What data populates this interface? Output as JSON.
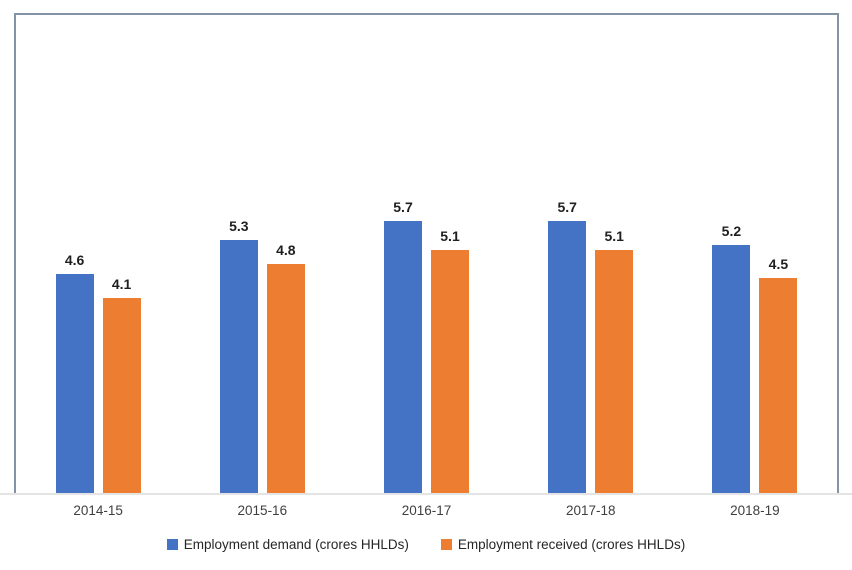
{
  "chart_data": {
    "type": "bar",
    "title": "",
    "categories": [
      "2014-15",
      "2015-16",
      "2016-17",
      "2017-18",
      "2018-19"
    ],
    "series": [
      {
        "name": "Employment demand (crores HHLDs)",
        "color": "#4472c4",
        "values": [
          4.6,
          5.3,
          5.7,
          5.7,
          5.2
        ]
      },
      {
        "name": "Employment received (crores HHLDs)",
        "color": "#ed7d31",
        "values": [
          4.1,
          4.8,
          5.1,
          5.1,
          4.5
        ]
      }
    ],
    "xlabel": "",
    "ylabel": "",
    "ylim": [
      0,
      10
    ],
    "grid": false,
    "legend_position": "bottom",
    "data_labels": "bold, one decimal, above each bar"
  },
  "colors": {
    "demand_blue": "#4472c4",
    "received_orange": "#ed7d31",
    "frame_border": "#8494a7",
    "axis_line": "#e4e4e4",
    "value_label": "#1f1f1f",
    "category_label": "#3f3f3f",
    "legend_label": "#262626",
    "background": "#ffffff"
  }
}
